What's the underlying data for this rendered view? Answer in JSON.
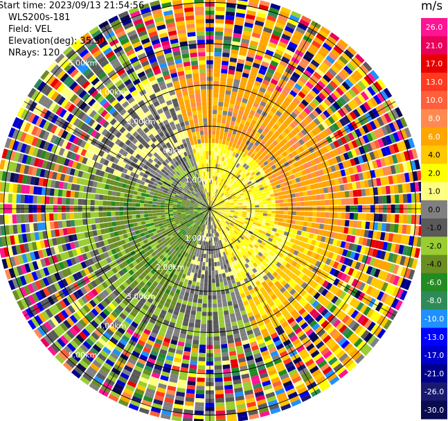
{
  "info": {
    "start_time": "Start time: 2023/09/13 21:54:56",
    "instrument": "WLS200s-181",
    "field": "Field: VEL",
    "elevation": "Elevation(deg): 35.30",
    "nrays": "NRays: 120"
  },
  "chart_data": {
    "type": "heatmap",
    "projection": "polar-ppi",
    "field": "VEL",
    "units": "m/s",
    "range_rings_km": [
      1,
      2,
      3,
      4,
      5
    ],
    "range_ring_labels": [
      "1.00km",
      "2.00km",
      "3.00km",
      "4.00km",
      "5.00km"
    ],
    "spokes_deg": [
      0,
      30,
      60,
      90,
      120,
      150,
      180,
      210,
      240,
      270,
      300,
      330
    ],
    "max_range_km": 5.2,
    "gate_km": 0.1,
    "colorbar": {
      "title": "m/s",
      "ticks": [
        "26.0",
        "21.0",
        "17.0",
        "13.0",
        "10.0",
        "8.0",
        "6.0",
        "4.0",
        "2.0",
        "1.0",
        "0.0",
        "-1.0",
        "-2.0",
        "-4.0",
        "-6.0",
        "-8.0",
        "-10.0",
        "-13.0",
        "-17.0",
        "-21.0",
        "-26.0",
        "-30.0"
      ],
      "colors": [
        "#ff1493",
        "#e8005a",
        "#e80000",
        "#ff3a20",
        "#ff5f3a",
        "#ff8a50",
        "#ffa500",
        "#ffc800",
        "#ffff00",
        "#ffff80",
        "#808080",
        "#5a5a5a",
        "#9acd32",
        "#6b8e23",
        "#228b22",
        "#2e8b57",
        "#1e90ff",
        "#0000ff",
        "#0000cd",
        "#00008b",
        "#191970",
        "#0a0a50"
      ]
    },
    "sectors": [
      {
        "azimuth_from": 345,
        "azimuth_to": 105,
        "near_km": 1.6,
        "value": 2.0,
        "far_value": 6.0
      },
      {
        "azimuth_from": 105,
        "azimuth_to": 160,
        "near_km": 2.2,
        "value": 2.0,
        "far_value": 4.0
      },
      {
        "azimuth_from": 160,
        "azimuth_to": 200,
        "near_km": 1.8,
        "value": 0.0,
        "far_value": -1.0
      },
      {
        "azimuth_from": 200,
        "azimuth_to": 290,
        "near_km": 2.6,
        "value": -4.0,
        "far_value": -2.0
      },
      {
        "azimuth_from": 290,
        "azimuth_to": 345,
        "near_km": 1.4,
        "value": -1.0,
        "far_value": 0.0
      }
    ],
    "noisy_beyond_km": 3.3
  }
}
